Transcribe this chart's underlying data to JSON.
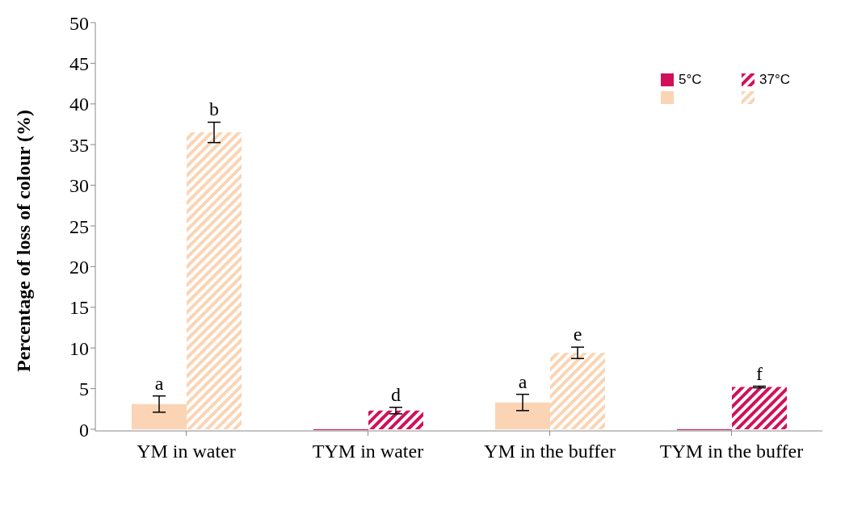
{
  "chart_data": {
    "type": "bar",
    "ylabel": "Percentage of loss of colour (%)",
    "categories": [
      "YM in water",
      "TYM in water",
      "YM in the buffer",
      "TYM in the buffer"
    ],
    "series": [
      {
        "name": "5°C",
        "colors": [
          "#fad4b4",
          "#d1105a",
          "#fad4b4",
          "#d1105a"
        ],
        "values": [
          3.1,
          -0.1,
          3.3,
          -0.1
        ],
        "errors": [
          1.0,
          null,
          1.0,
          null
        ],
        "value_labels": [
          "a",
          null,
          "a",
          null
        ]
      },
      {
        "name": "37°C",
        "colors": [
          "#fad4b4",
          "#d1105a",
          "#fad4b4",
          "#d1105a"
        ],
        "values": [
          36.5,
          2.3,
          9.4,
          5.2
        ],
        "errors": [
          1.25,
          0.4,
          0.7,
          0.1
        ],
        "value_labels": [
          "b",
          "d",
          "e",
          "f"
        ]
      }
    ],
    "ylim": [
      -0.2,
      50
    ],
    "yticks": [
      0,
      5,
      10,
      15,
      20,
      25,
      30,
      35,
      40,
      45,
      50
    ],
    "grid": false,
    "legend": "top right"
  }
}
